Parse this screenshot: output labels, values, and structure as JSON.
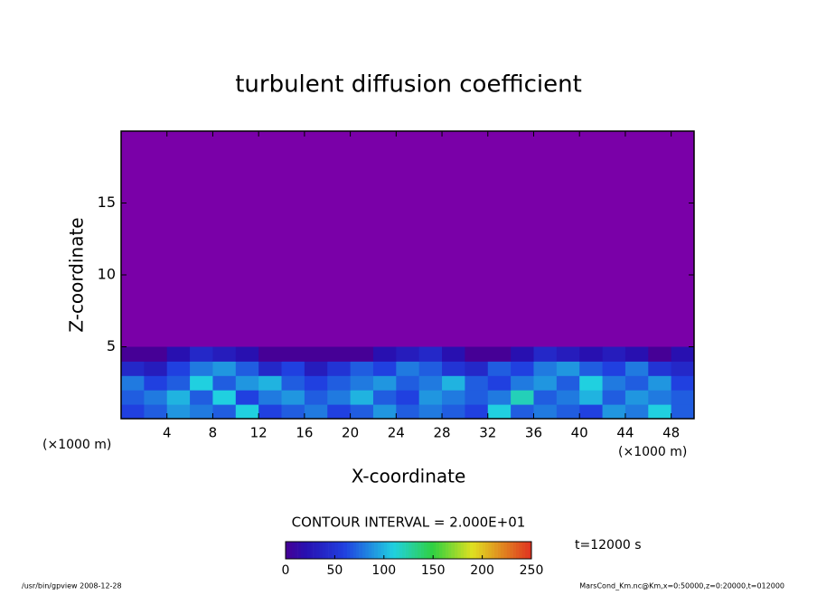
{
  "chart_data": {
    "type": "heatmap",
    "title": "turbulent diffusion coefficient",
    "x_label": "X-coordinate",
    "y_label": "Z-coordinate",
    "x_unit": "(×1000 m)",
    "x_unit_right": "(×1000 m)",
    "contour_note": "CONTOUR INTERVAL = 2.000E+01",
    "time_label": "t=12000 s",
    "footer_left": "/usr/bin/gpview   2008-12-28",
    "footer_right": "MarsCond_Km.nc@Km,x=0:50000,z=0:20000,t=012000",
    "background_color": "#7a00a8",
    "xlim": [
      0,
      50
    ],
    "xticks": [
      4,
      8,
      12,
      16,
      20,
      24,
      28,
      32,
      36,
      40,
      44,
      48
    ],
    "ylim": [
      0,
      20
    ],
    "yticks": [
      5,
      10,
      15
    ],
    "x": [
      1,
      3,
      5,
      7,
      9,
      11,
      13,
      15,
      17,
      19,
      21,
      23,
      25,
      27,
      29,
      31,
      33,
      35,
      37,
      39,
      41,
      43,
      45,
      47,
      49
    ],
    "z": [
      0.5,
      1.5,
      2.5,
      3.5,
      4.5
    ],
    "values": [
      [
        60,
        70,
        90,
        80,
        70,
        110,
        60,
        70,
        80,
        60,
        70,
        90,
        70,
        80,
        70,
        60,
        110,
        70,
        80,
        70,
        60,
        90,
        80,
        110,
        70
      ],
      [
        70,
        80,
        100,
        70,
        110,
        60,
        80,
        90,
        70,
        80,
        100,
        70,
        60,
        90,
        80,
        70,
        80,
        120,
        70,
        80,
        100,
        70,
        90,
        80,
        70
      ],
      [
        80,
        60,
        70,
        110,
        70,
        90,
        100,
        70,
        60,
        70,
        80,
        90,
        70,
        80,
        100,
        70,
        60,
        80,
        90,
        70,
        110,
        80,
        70,
        90,
        60
      ],
      [
        40,
        30,
        60,
        80,
        90,
        70,
        40,
        60,
        30,
        50,
        70,
        60,
        80,
        70,
        50,
        40,
        70,
        60,
        80,
        90,
        70,
        60,
        80,
        50,
        40
      ],
      [
        0,
        0,
        20,
        40,
        30,
        20,
        0,
        0,
        0,
        0,
        0,
        20,
        30,
        40,
        20,
        0,
        0,
        20,
        40,
        30,
        20,
        30,
        20,
        0,
        20
      ]
    ],
    "colorbar": {
      "lim": [
        0,
        250
      ],
      "ticks": [
        0,
        50,
        100,
        150,
        200,
        250
      ]
    }
  }
}
